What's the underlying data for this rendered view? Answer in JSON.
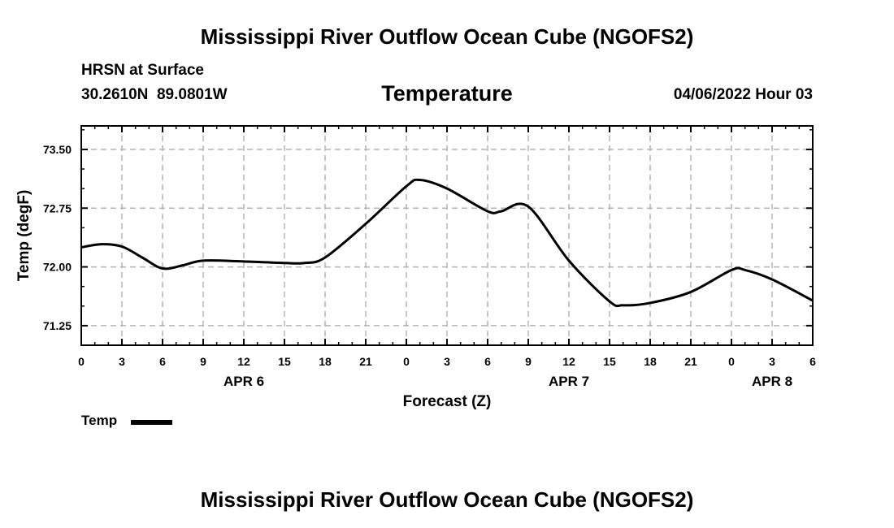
{
  "page": {
    "title_top": "Mississippi River Outflow Ocean Cube (NGOFS2)",
    "title_bottom": "Mississippi River Outflow Ocean Cube (NGOFS2)",
    "station": "HRSN at Surface",
    "coords": "30.2610N  89.0801W",
    "variable": "Temperature",
    "datetime": "04/06/2022 Hour 03",
    "legend_label": "Temp"
  },
  "chart_data": {
    "type": "line",
    "title": "Temperature",
    "xlabel": "Forecast (Z)",
    "ylabel": "Temp (degF)",
    "xlim": [
      0,
      54
    ],
    "ylim": [
      71.0,
      73.8
    ],
    "yticks": [
      71.25,
      72.0,
      72.75,
      73.5
    ],
    "ytick_labels": [
      "71.25",
      "72.00",
      "72.75",
      "73.50"
    ],
    "xticks": [
      0,
      3,
      6,
      9,
      12,
      15,
      18,
      21,
      24,
      27,
      30,
      33,
      36,
      39,
      42,
      45,
      48,
      51,
      54
    ],
    "xtick_labels": [
      "0",
      "3",
      "6",
      "9",
      "12",
      "15",
      "18",
      "21",
      "0",
      "3",
      "6",
      "9",
      "12",
      "15",
      "18",
      "21",
      "0",
      "3",
      "6"
    ],
    "day_labels": [
      {
        "x": 12,
        "label": "APR 6"
      },
      {
        "x": 36,
        "label": "APR 7"
      },
      {
        "x": 51,
        "label": "APR 8"
      }
    ],
    "grid": true,
    "series": [
      {
        "name": "Temp",
        "color": "#000000",
        "x": [
          0,
          1.5,
          3,
          4.5,
          6,
          7.5,
          9,
          12,
          15,
          16.5,
          18,
          21,
          24,
          25,
          27,
          30,
          31,
          33,
          36,
          39,
          40,
          42,
          45,
          48,
          49,
          51,
          54
        ],
        "values": [
          72.25,
          72.29,
          72.26,
          72.12,
          71.98,
          72.02,
          72.08,
          72.07,
          72.05,
          72.05,
          72.12,
          72.55,
          73.03,
          73.11,
          73.0,
          72.71,
          72.71,
          72.77,
          72.08,
          71.56,
          71.51,
          71.54,
          71.68,
          71.96,
          71.96,
          71.84,
          71.57
        ]
      }
    ]
  }
}
